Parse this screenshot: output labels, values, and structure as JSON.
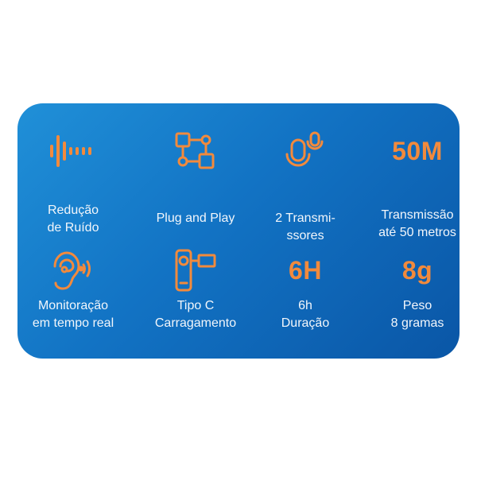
{
  "colors": {
    "accent": "#f28a3c",
    "card": "#1273c4"
  },
  "features": [
    {
      "icon": "sound-wave-icon",
      "lines": [
        "Redução",
        "de Ruído"
      ]
    },
    {
      "icon": "plug-and-play-diagram-icon",
      "lines": [
        "Plug and Play"
      ]
    },
    {
      "icon": "two-microphones-icon",
      "lines": [
        "2 Transmi-",
        "ssores"
      ]
    },
    {
      "big": "50M",
      "lines": [
        "Transmissão",
        "até 50 metros"
      ]
    },
    {
      "icon": "ear-sound-icon",
      "lines": [
        "Monitoração",
        "em tempo real"
      ]
    },
    {
      "icon": "usb-c-transmitter-icon",
      "lines": [
        "Tipo C",
        "Carragamento"
      ]
    },
    {
      "big": "6H",
      "lines": [
        "6h",
        "Duração"
      ]
    },
    {
      "big": "8g",
      "lines": [
        "Peso",
        "8 gramas"
      ]
    }
  ]
}
